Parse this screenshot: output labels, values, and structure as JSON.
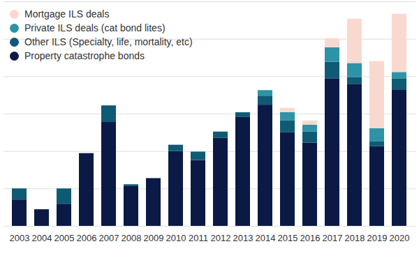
{
  "chart_data": {
    "type": "bar",
    "stacked": true,
    "grid": true,
    "legend": "top-left",
    "tick_labels": "x",
    "categories": [
      "2003",
      "2004",
      "2005",
      "2006",
      "2007",
      "2008",
      "2009",
      "2010",
      "2011",
      "2012",
      "2013",
      "2014",
      "2015",
      "2016",
      "2017",
      "2018",
      "2019",
      "2020"
    ],
    "ylim": [
      0,
      15
    ],
    "yticks": [
      0,
      2.5,
      5,
      7.5,
      10,
      12.5,
      15
    ],
    "series": [
      {
        "name": "Property catastrophe bonds",
        "color": "#0b1a45",
        "values": [
          1.76,
          1.11,
          1.48,
          4.86,
          6.94,
          2.69,
          3.19,
          5.0,
          4.4,
          5.88,
          7.27,
          8.1,
          6.25,
          5.56,
          9.86,
          9.49,
          5.32,
          9.12
        ]
      },
      {
        "name": "Other ILS (Specialty, life, mortality, etc)",
        "color": "#0f5a74",
        "values": [
          0.74,
          0,
          1.02,
          0,
          1.11,
          0.09,
          0,
          0.42,
          0.56,
          0.42,
          0.32,
          0.6,
          0.79,
          0.74,
          1.11,
          0.46,
          0.32,
          0.74
        ]
      },
      {
        "name": "Private ILS deals (cat bond lites)",
        "color": "#2e93a6",
        "values": [
          0,
          0,
          0,
          0,
          0,
          0,
          0,
          0,
          0,
          0,
          0,
          0.37,
          0.56,
          0.46,
          0.97,
          0.93,
          0.88,
          0.42
        ]
      },
      {
        "name": "Mortgage ILS deals",
        "color": "#f9d9cf",
        "values": [
          0,
          0,
          0,
          0,
          0,
          0,
          0,
          0,
          0,
          0,
          0,
          0,
          0.28,
          0.28,
          0.6,
          2.96,
          4.49,
          3.89
        ]
      }
    ]
  }
}
